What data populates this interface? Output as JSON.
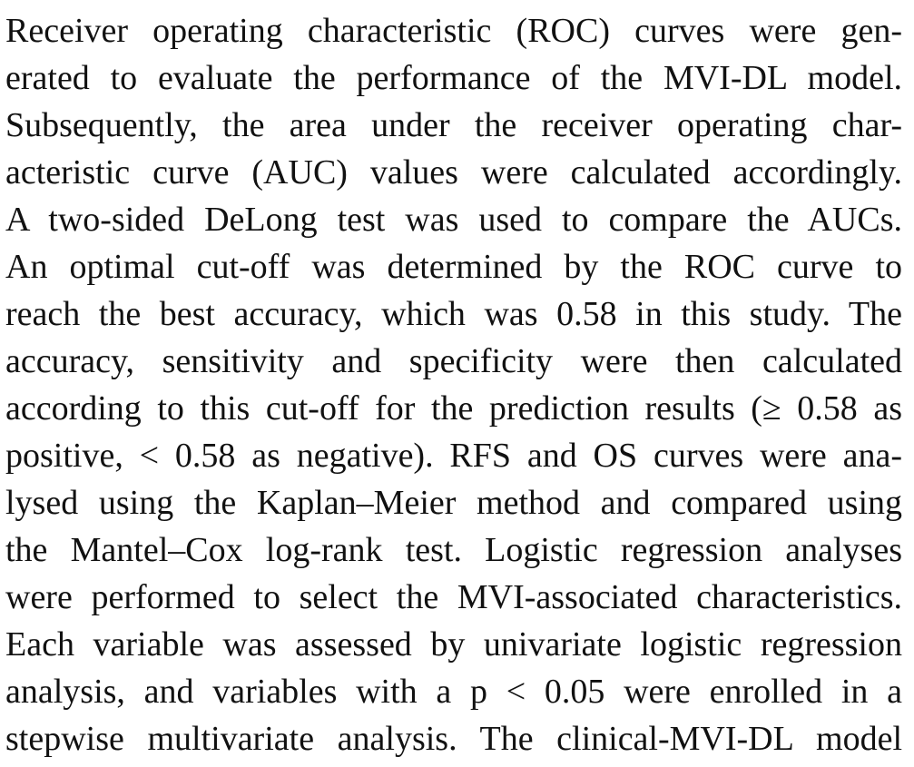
{
  "paragraph": {
    "lines": [
      "Receiver operating characteristic (ROC) curves were gen-",
      "erated to evaluate the performance of the MVI-DL model.",
      "Subsequently, the area under the receiver operating char-",
      "acteristic curve (AUC) values were calculated accordingly.",
      "A two-sided DeLong test was used to compare the AUCs.",
      "An optimal cut-off was determined by the ROC curve to",
      "reach the best accuracy, which was 0.58 in this study. The",
      "accuracy, sensitivity and specificity were then calculated",
      "according to this cut-off for the prediction results (≥ 0.58 as",
      "positive, < 0.58 as negative). RFS and OS curves were ana-",
      "lysed using the Kaplan–Meier method and compared using",
      "the Mantel–Cox log-rank test. Logistic regression analyses",
      "were performed to select the MVI-associated characteristics.",
      "Each variable was assessed by univariate logistic regression",
      "analysis, and variables with a p < 0.05 were enrolled in a",
      "stepwise multivariate analysis. The clinical-MVI-DL model"
    ]
  }
}
